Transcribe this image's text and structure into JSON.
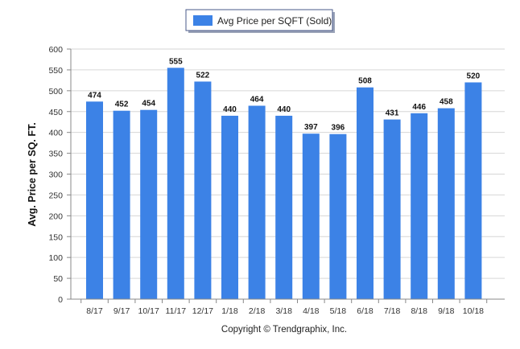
{
  "chart_data": {
    "type": "bar",
    "categories": [
      "8/17",
      "9/17",
      "10/17",
      "11/17",
      "12/17",
      "1/18",
      "2/18",
      "3/18",
      "4/18",
      "5/18",
      "6/18",
      "7/18",
      "8/18",
      "9/18",
      "10/18"
    ],
    "series": [
      {
        "name": "Avg Price per SQFT (Sold)",
        "values": [
          474,
          452,
          454,
          555,
          522,
          440,
          464,
          440,
          397,
          396,
          508,
          431,
          446,
          458,
          520
        ],
        "color": "#3c82e6"
      }
    ],
    "title": "",
    "xlabel": "",
    "ylabel": "Avg. Price per SQ. FT.",
    "ylim": [
      0,
      600
    ],
    "yticks": [
      0,
      50,
      100,
      150,
      200,
      250,
      300,
      350,
      400,
      450,
      500,
      550,
      600
    ],
    "grid": true,
    "legend_position": "top-center",
    "data_labels": true
  },
  "footer": {
    "copyright": "Copyright © Trendgraphix, Inc."
  }
}
